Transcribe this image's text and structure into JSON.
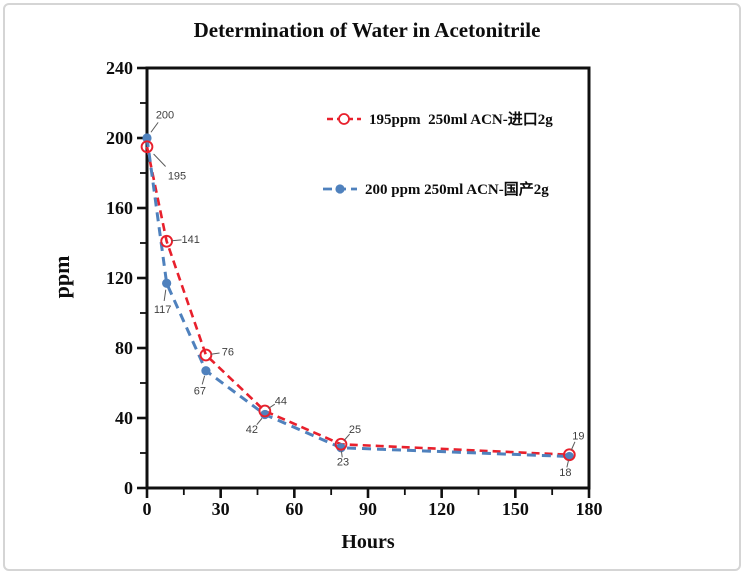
{
  "page": {
    "background_color": "#ffffff",
    "card_border_color": "#d5d5d5"
  },
  "chart_data": {
    "type": "line",
    "title": "Determination of Water in Acetonitrile",
    "xlabel": "Hours",
    "ylabel": "ppm",
    "xlim": [
      0,
      180
    ],
    "ylim": [
      0,
      240
    ],
    "x_major_ticks": [
      0,
      30,
      60,
      90,
      120,
      150,
      180
    ],
    "x_minor_tick_step": 15,
    "y_major_ticks": [
      0,
      40,
      80,
      120,
      160,
      200,
      240
    ],
    "y_minor_tick_step": 20,
    "grid": false,
    "legend_position": "inside-top-right",
    "data_labels_shown": true,
    "x": [
      0,
      8,
      24,
      48,
      79,
      172
    ],
    "series": [
      {
        "name": "195ppm  250ml ACN-进口2g",
        "color": "#e8202c",
        "line_style": "dashed",
        "marker": "open-circle",
        "values": [
          195,
          141,
          76,
          44,
          25,
          19
        ]
      },
      {
        "name": "200 ppm 250ml ACN-国产2g",
        "color": "#4f81bd",
        "line_style": "dashed",
        "marker": "filled-circle",
        "values": [
          200,
          117,
          67,
          42,
          23,
          18
        ]
      }
    ]
  }
}
